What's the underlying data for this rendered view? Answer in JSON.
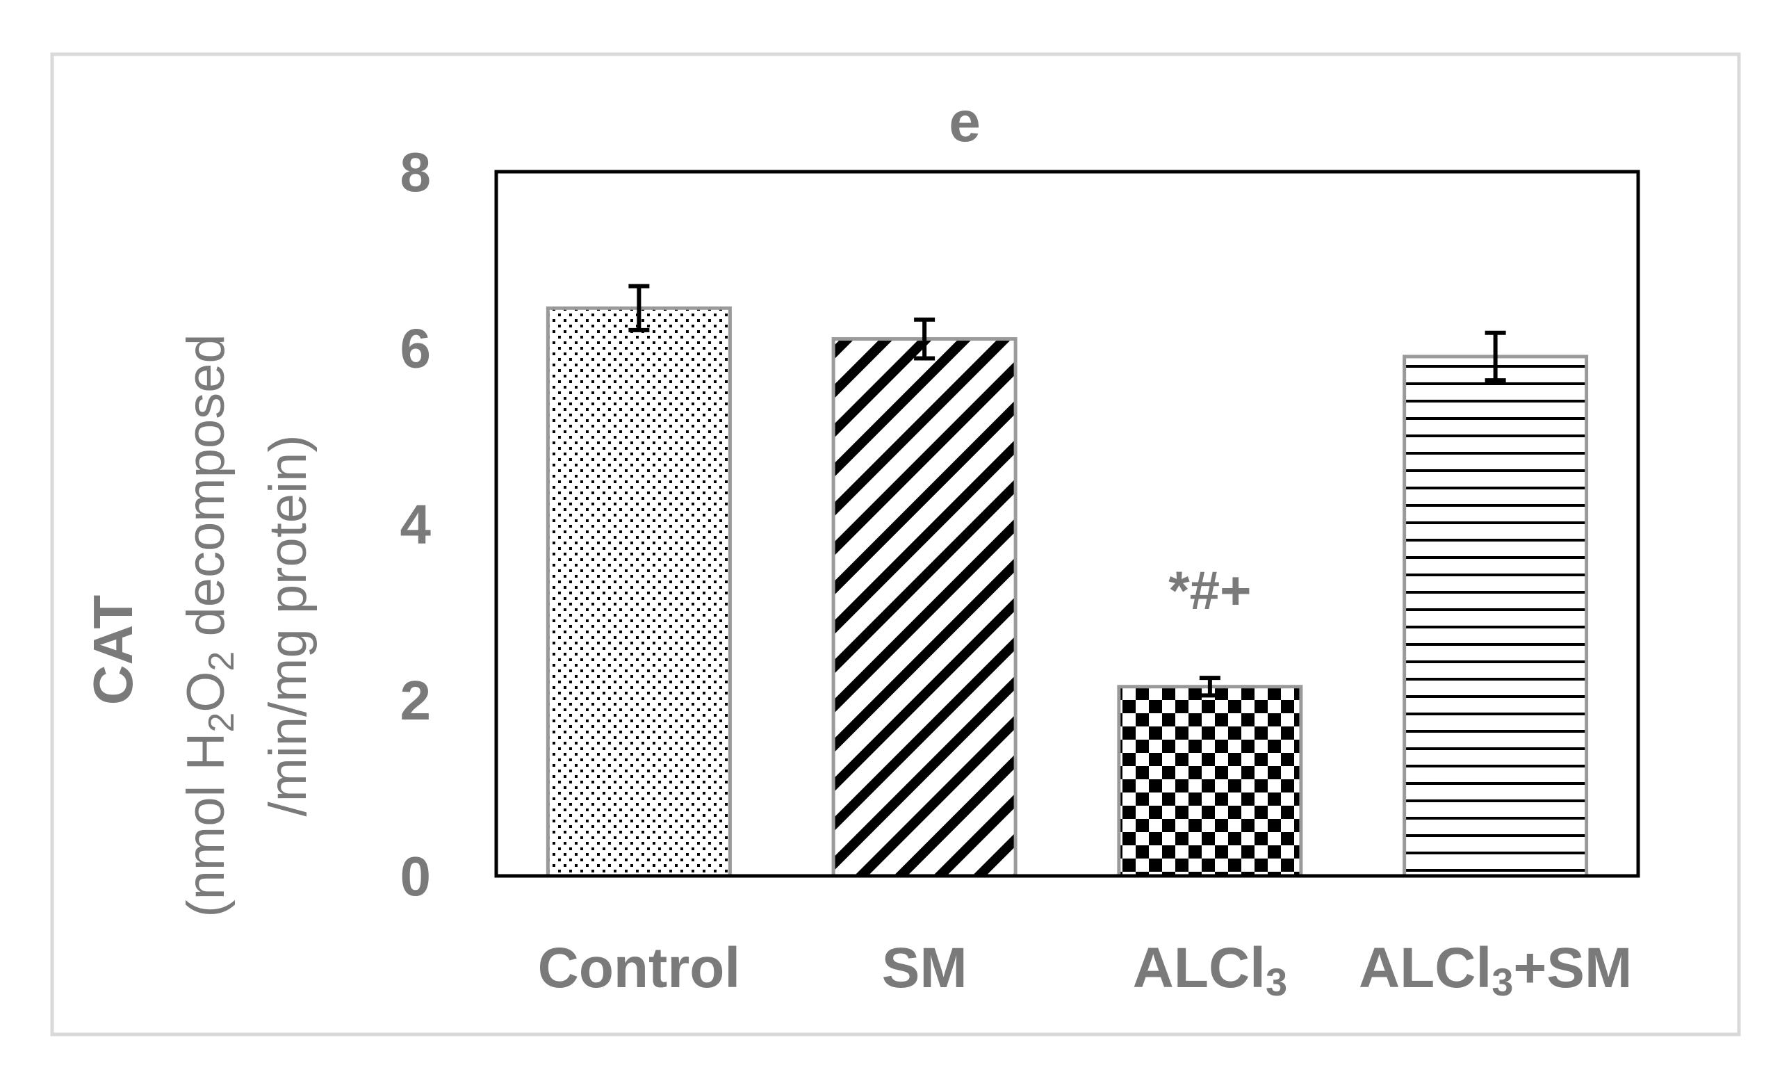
{
  "chart_data": {
    "type": "bar",
    "panel_label": "e",
    "title": "e",
    "ylabel_bold": "CAT",
    "ylabel_line1_prefix": "(nmol H",
    "ylabel_sub1": "2",
    "ylabel_mid": "O",
    "ylabel_sub2": "2",
    "ylabel_line1_suffix": " decomposed",
    "ylabel_line2": "/min/mg protein)",
    "ylim": [
      0,
      8
    ],
    "yticks": [
      "0",
      "2",
      "4",
      "6",
      "8"
    ],
    "categories": [
      {
        "main": "Control",
        "sub": "",
        "tail": ""
      },
      {
        "main": "SM",
        "sub": "",
        "tail": ""
      },
      {
        "main": "ALCl",
        "sub": "3",
        "tail": ""
      },
      {
        "main": "ALCl",
        "sub": "3",
        "tail": "+SM"
      }
    ],
    "values": [
      6.45,
      6.1,
      2.15,
      5.9
    ],
    "errors": [
      0.25,
      0.22,
      0.1,
      0.27
    ],
    "patterns": [
      "dots",
      "diagonal",
      "checker",
      "horizontal"
    ],
    "annotations": [
      "",
      "",
      "*#+",
      ""
    ]
  },
  "colors": {
    "text": "#7a7a7a",
    "bar_border": "#9a9a9a",
    "axes": "#000000",
    "frame": "#d9d9d9"
  }
}
